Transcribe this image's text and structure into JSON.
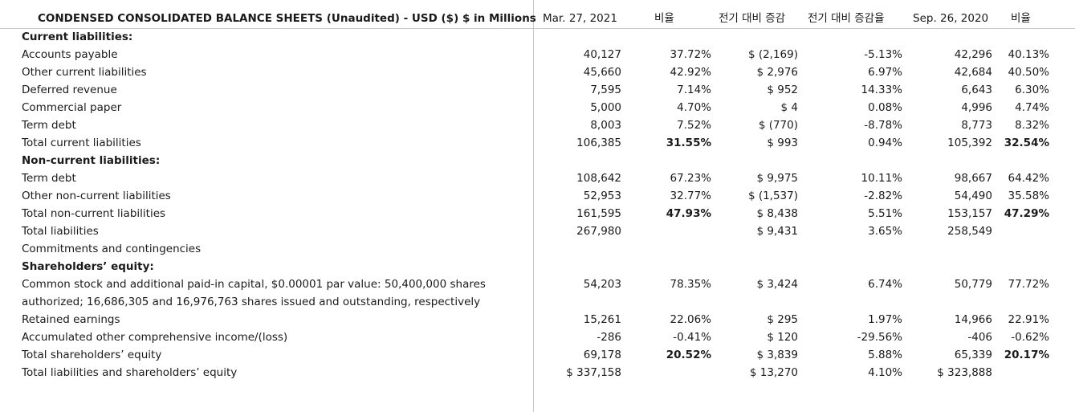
{
  "header": {
    "title": "CONDENSED CONSOLIDATED BALANCE SHEETS (Unaudited) - USD ($) $ in Millions",
    "col_mar": "Mar. 27, 2021",
    "col_ratio1": "비율",
    "col_change": "전기 대비 증감",
    "col_change_rate": "전기 대비 증감율",
    "col_sep": "Sep. 26, 2020",
    "col_ratio2": "비율"
  },
  "rows": [
    {
      "label": "Current liabilities:",
      "bold": true,
      "mar": "",
      "r1": "",
      "chg": "",
      "rate": "",
      "sep": "",
      "r2": ""
    },
    {
      "label": "Accounts payable",
      "mar": "40,127",
      "r1": "37.72%",
      "chg": "$ (2,169)",
      "rate": "-5.13%",
      "sep": "42,296",
      "r2": "40.13%"
    },
    {
      "label": "Other current liabilities",
      "mar": "45,660",
      "r1": "42.92%",
      "chg": "$ 2,976",
      "rate": "6.97%",
      "sep": "42,684",
      "r2": "40.50%"
    },
    {
      "label": "Deferred revenue",
      "mar": "7,595",
      "r1": "7.14%",
      "chg": "$ 952",
      "rate": "14.33%",
      "sep": "6,643",
      "r2": "6.30%"
    },
    {
      "label": "Commercial paper",
      "mar": "5,000",
      "r1": "4.70%",
      "chg": "$ 4",
      "rate": "0.08%",
      "sep": "4,996",
      "r2": "4.74%"
    },
    {
      "label": "Term debt",
      "mar": "8,003",
      "r1": "7.52%",
      "chg": "$ (770)",
      "rate": "-8.78%",
      "sep": "8,773",
      "r2": "8.32%"
    },
    {
      "label": "Total current liabilities",
      "mar": "106,385",
      "r1": "31.55%",
      "r1bold": true,
      "chg": "$ 993",
      "rate": "0.94%",
      "sep": "105,392",
      "r2": "32.54%",
      "r2bold": true
    },
    {
      "label": "Non-current liabilities:",
      "bold": true,
      "mar": "",
      "r1": "",
      "chg": "",
      "rate": "",
      "sep": "",
      "r2": ""
    },
    {
      "label": "Term debt",
      "mar": "108,642",
      "r1": "67.23%",
      "chg": "$ 9,975",
      "rate": "10.11%",
      "sep": "98,667",
      "r2": "64.42%"
    },
    {
      "label": "Other non-current liabilities",
      "mar": "52,953",
      "r1": "32.77%",
      "chg": "$ (1,537)",
      "rate": "-2.82%",
      "sep": "54,490",
      "r2": "35.58%"
    },
    {
      "label": "Total non-current liabilities",
      "mar": "161,595",
      "r1": "47.93%",
      "r1bold": true,
      "chg": "$ 8,438",
      "rate": "5.51%",
      "sep": "153,157",
      "r2": "47.29%",
      "r2bold": true
    },
    {
      "label": "Total liabilities",
      "mar": "267,980",
      "r1": "",
      "chg": "$ 9,431",
      "rate": "3.65%",
      "sep": "258,549",
      "r2": ""
    },
    {
      "label": "Commitments and contingencies",
      "mar": "",
      "r1": "",
      "chg": "",
      "rate": "",
      "sep": "",
      "r2": ""
    },
    {
      "label": "Shareholders’ equity:",
      "bold": true,
      "mar": "",
      "r1": "",
      "chg": "",
      "rate": "",
      "sep": "",
      "r2": ""
    },
    {
      "label": "Common stock and additional paid-in capital, $0.00001 par value: 50,400,000 shares",
      "mar": "54,203",
      "r1": "78.35%",
      "chg": "$ 3,424",
      "rate": "6.74%",
      "sep": "50,779",
      "r2": "77.72%"
    },
    {
      "label": "authorized; 16,686,305 and 16,976,763 shares issued and outstanding, respectively",
      "mar": "",
      "r1": "",
      "chg": "",
      "rate": "",
      "sep": "",
      "r2": ""
    },
    {
      "label": "Retained earnings",
      "mar": "15,261",
      "r1": "22.06%",
      "chg": "$ 295",
      "rate": "1.97%",
      "sep": "14,966",
      "r2": "22.91%"
    },
    {
      "label": "Accumulated other comprehensive income/(loss)",
      "mar": "-286",
      "r1": "-0.41%",
      "chg": "$ 120",
      "rate": "-29.56%",
      "sep": "-406",
      "r2": "-0.62%"
    },
    {
      "label": "Total shareholders’ equity",
      "mar": "69,178",
      "r1": "20.52%",
      "r1bold": true,
      "chg": "$ 3,839",
      "rate": "5.88%",
      "sep": "65,339",
      "r2": "20.17%",
      "r2bold": true
    },
    {
      "label": "Total liabilities and shareholders’ equity",
      "mar": "$ 337,158",
      "r1": "",
      "chg": "$ 13,270",
      "rate": "4.10%",
      "sep": "$ 323,888",
      "r2": ""
    }
  ]
}
